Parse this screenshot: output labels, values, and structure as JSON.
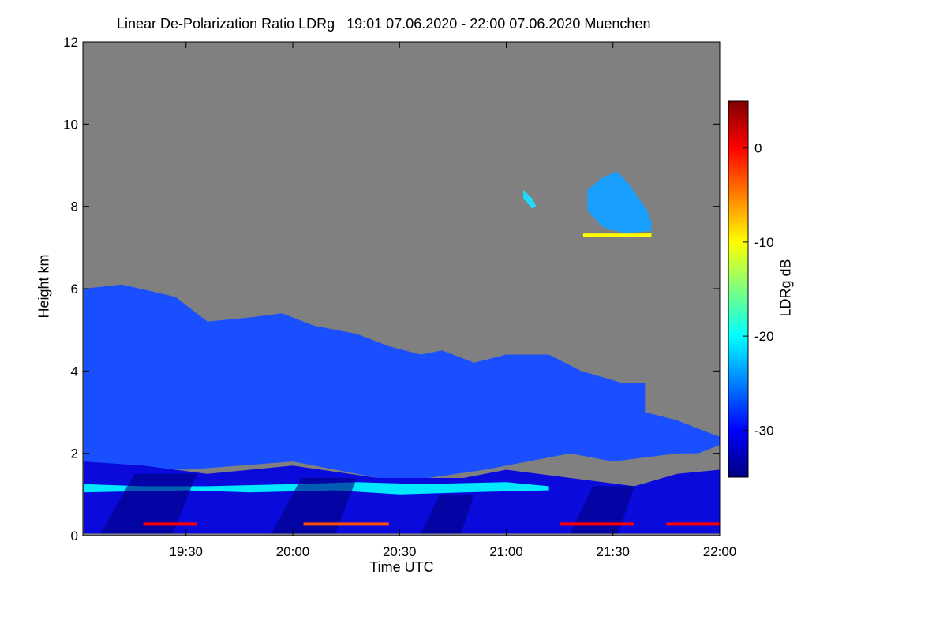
{
  "chart_data": {
    "type": "heatmap",
    "title": "Linear De-Polarization Ratio LDRg   19:01 07.06.2020 - 22:00 07.06.2020 Muenchen",
    "xlabel": "Time UTC",
    "ylabel": "Height km",
    "xlim_hours": [
      19.0167,
      22.0
    ],
    "ylim_km": [
      0,
      12
    ],
    "x_ticks": [
      {
        "label": "19:30",
        "value": 19.5
      },
      {
        "label": "20:00",
        "value": 20.0
      },
      {
        "label": "20:30",
        "value": 20.5
      },
      {
        "label": "21:00",
        "value": 21.0
      },
      {
        "label": "21:30",
        "value": 21.5
      },
      {
        "label": "22:00",
        "value": 22.0
      }
    ],
    "y_ticks": [
      {
        "label": "0",
        "value": 0
      },
      {
        "label": "2",
        "value": 2
      },
      {
        "label": "4",
        "value": 4
      },
      {
        "label": "6",
        "value": 6
      },
      {
        "label": "8",
        "value": 8
      },
      {
        "label": "10",
        "value": 10
      },
      {
        "label": "12",
        "value": 12
      }
    ],
    "colorbar": {
      "label": "LDRg dB",
      "range": [
        -35,
        5
      ],
      "ticks": [
        {
          "label": "0",
          "value": 0
        },
        {
          "label": "-10",
          "value": -10
        },
        {
          "label": "-20",
          "value": -20
        },
        {
          "label": "-30",
          "value": -30
        }
      ],
      "colormap": [
        "#00007f",
        "#0000ff",
        "#007fff",
        "#00ffff",
        "#7fff7f",
        "#ffff00",
        "#ff7f00",
        "#ff0000",
        "#7f0000"
      ]
    },
    "background_color": "#808080",
    "cloud_features": [
      {
        "name": "main-cloud-layer",
        "ldr_db": -31,
        "color": "#1a4fff",
        "top_km": [
          [
            19.02,
            6.0
          ],
          [
            19.2,
            6.1
          ],
          [
            19.45,
            5.8
          ],
          [
            19.6,
            5.2
          ],
          [
            19.8,
            5.3
          ],
          [
            19.95,
            5.4
          ],
          [
            20.1,
            5.1
          ],
          [
            20.3,
            4.9
          ],
          [
            20.45,
            4.6
          ],
          [
            20.6,
            4.4
          ],
          [
            20.7,
            4.5
          ],
          [
            20.85,
            4.2
          ],
          [
            21.0,
            4.4
          ],
          [
            21.2,
            4.4
          ],
          [
            21.35,
            4.0
          ],
          [
            21.55,
            3.7
          ],
          [
            21.65,
            3.7
          ],
          [
            21.65,
            3.0
          ],
          [
            21.8,
            2.8
          ],
          [
            21.95,
            2.5
          ],
          [
            22.0,
            2.4
          ]
        ],
        "base_km": [
          [
            22.0,
            2.2
          ],
          [
            21.9,
            2.0
          ],
          [
            21.8,
            2.0
          ],
          [
            21.5,
            1.8
          ],
          [
            21.3,
            2.0
          ],
          [
            21.1,
            1.8
          ],
          [
            20.9,
            1.6
          ],
          [
            20.5,
            1.3
          ],
          [
            20.0,
            1.8
          ],
          [
            19.5,
            1.6
          ],
          [
            19.02,
            1.7
          ]
        ]
      },
      {
        "name": "lower-dense-layer",
        "ldr_db": -34,
        "color": "#0a0adc",
        "top_km": [
          [
            19.02,
            1.8
          ],
          [
            19.3,
            1.7
          ],
          [
            19.6,
            1.5
          ],
          [
            20.0,
            1.7
          ],
          [
            20.4,
            1.4
          ],
          [
            20.8,
            1.4
          ],
          [
            21.0,
            1.6
          ],
          [
            21.3,
            1.4
          ],
          [
            21.6,
            1.2
          ],
          [
            21.8,
            1.5
          ],
          [
            22.0,
            1.6
          ]
        ],
        "base_km": [
          [
            22.0,
            0.05
          ],
          [
            19.02,
            0.05
          ]
        ]
      },
      {
        "name": "aerosol-layer-1km",
        "ldr_db": -21,
        "color": "#00e8ff",
        "top_km": [
          [
            19.02,
            1.25
          ],
          [
            19.3,
            1.2
          ],
          [
            19.6,
            1.2
          ],
          [
            20.0,
            1.25
          ],
          [
            20.3,
            1.3
          ],
          [
            20.6,
            1.25
          ],
          [
            21.0,
            1.3
          ],
          [
            21.2,
            1.2
          ]
        ],
        "base_km": [
          [
            21.2,
            1.1
          ],
          [
            20.8,
            1.05
          ],
          [
            20.5,
            1.0
          ],
          [
            20.2,
            1.1
          ],
          [
            19.8,
            1.05
          ],
          [
            19.5,
            1.1
          ],
          [
            19.02,
            1.05
          ]
        ]
      },
      {
        "name": "cirrus-8km",
        "ldr_db": -24,
        "color": "#19a0ff",
        "top_km": [
          [
            21.38,
            8.4
          ],
          [
            21.45,
            8.7
          ],
          [
            21.52,
            8.85
          ],
          [
            21.58,
            8.5
          ],
          [
            21.66,
            7.9
          ],
          [
            21.68,
            7.6
          ]
        ],
        "base_km": [
          [
            21.68,
            7.4
          ],
          [
            21.55,
            7.35
          ],
          [
            21.45,
            7.5
          ],
          [
            21.38,
            7.9
          ]
        ]
      },
      {
        "name": "cirrus-fragment",
        "ldr_db": -20,
        "color": "#22d8ff",
        "top_km": [
          [
            21.08,
            8.4
          ],
          [
            21.12,
            8.2
          ],
          [
            21.14,
            8.0
          ]
        ],
        "base_km": [
          [
            21.12,
            7.95
          ],
          [
            21.08,
            8.2
          ]
        ]
      }
    ],
    "rain_streaks": [
      {
        "start_hours": 19.1,
        "end_hours": 19.55,
        "base_km": 0.05,
        "top_km": 1.5,
        "ldr_db": -35
      },
      {
        "start_hours": 19.9,
        "end_hours": 20.3,
        "base_km": 0.05,
        "top_km": 1.4,
        "ldr_db": -35
      },
      {
        "start_hours": 20.6,
        "end_hours": 20.85,
        "base_km": 0.05,
        "top_km": 1.0,
        "ldr_db": -35
      },
      {
        "start_hours": 21.3,
        "end_hours": 21.6,
        "base_km": 0.05,
        "top_km": 1.2,
        "ldr_db": -35
      }
    ],
    "thin_layers": [
      {
        "height_km": 0.28,
        "start_hours": 19.3,
        "end_hours": 19.55,
        "ldr_db": 0
      },
      {
        "height_km": 0.28,
        "start_hours": 20.05,
        "end_hours": 20.45,
        "ldr_db": -3
      },
      {
        "height_km": 0.28,
        "start_hours": 21.25,
        "end_hours": 21.6,
        "ldr_db": 0
      },
      {
        "height_km": 0.28,
        "start_hours": 21.75,
        "end_hours": 22.0,
        "ldr_db": 0
      },
      {
        "height_km": 7.3,
        "start_hours": 21.36,
        "end_hours": 21.68,
        "ldr_db": -10
      }
    ]
  }
}
